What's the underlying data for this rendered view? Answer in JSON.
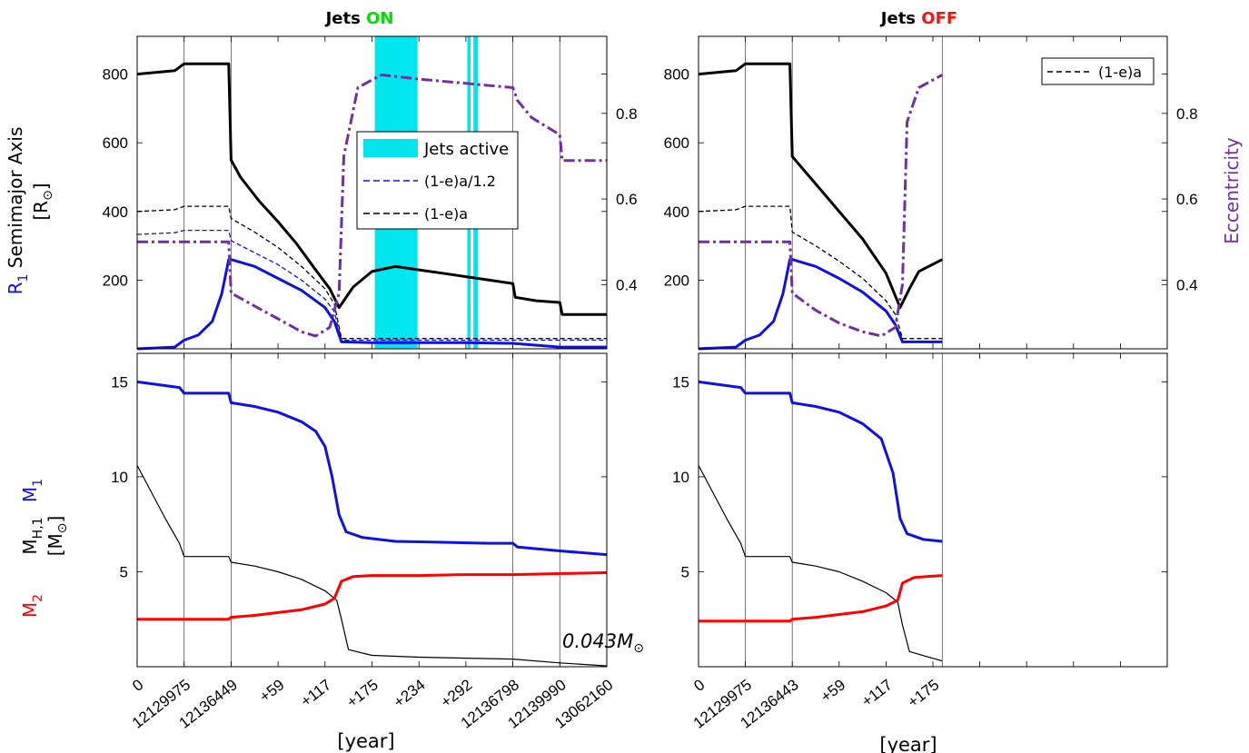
{
  "colors": {
    "r1": "#1010e0",
    "black": "#000000",
    "ecc": "#7030a0",
    "m2": "#ff0000",
    "jets": "#00e5ee",
    "on": "#00e000",
    "off": "#ff1010"
  },
  "titles": {
    "left_prefix": "Jets ",
    "left_suffix": "ON",
    "right_prefix": "Jets ",
    "right_suffix": "OFF"
  },
  "axis_labels": {
    "top_left_r1": "R",
    "top_left_r1_sub": "1",
    "top_left_semimajor": "Semimajor Axis",
    "top_left_unit": "[R",
    "top_left_unit_sym": "⊙",
    "top_left_unit_close": "]",
    "right_ecc": "Eccentricity",
    "bottom_m1": "M",
    "bottom_m1_sub": "1",
    "bottom_mh": "M",
    "bottom_mh_sub": "H,1",
    "bottom_unit": "[M",
    "bottom_unit_sym": "⊙",
    "bottom_unit_close": "]",
    "bottom_m2": "M",
    "bottom_m2_sub": "2",
    "xlabel_left": "[year]",
    "xlabel_right": "[year]"
  },
  "annotation": {
    "core_mass": "0.043M",
    "core_mass_sym": "⊙"
  },
  "legend_left": {
    "items": [
      "Jets active",
      "(1-e)a/1.2",
      "(1-e)a"
    ]
  },
  "legend_right": {
    "items": [
      "(1-e)a"
    ]
  },
  "chart_data": [
    {
      "type": "line",
      "panel": "top-left",
      "title": "Jets ON",
      "ylabel_left": "R1 Semimajor Axis [R⊙]",
      "ylabel_right": "Eccentricity",
      "y_left_ticks": [
        200,
        400,
        600,
        800
      ],
      "y_left_lim": [
        0,
        910
      ],
      "y_right_ticks": [
        0.4,
        0.6,
        0.8
      ],
      "y_right_lim": [
        0.25,
        0.98
      ],
      "x_positions": [
        0,
        1,
        2,
        3,
        4,
        5,
        6,
        7,
        8,
        9,
        10
      ],
      "xtick_labels": [
        "0",
        "12129975",
        "12136449",
        "+59",
        "+117",
        "+175",
        "+234",
        "+292",
        "12136798",
        "12139990",
        "13062160"
      ],
      "xlabel": "[year]",
      "jets_active_intervals": [
        [
          5.06,
          5.97
        ],
        [
          7.03,
          7.1
        ],
        [
          7.16,
          7.26
        ]
      ],
      "series": [
        {
          "name": "Semimajor Axis",
          "axis": "left",
          "x": [
            0,
            0.8,
            1,
            1.95,
            2,
            2.2,
            2.6,
            3,
            3.4,
            3.8,
            4.1,
            4.3,
            4.6,
            5,
            5.5,
            6,
            6.5,
            7,
            7.5,
            8,
            8.05,
            8.5,
            9,
            9.05,
            10
          ],
          "y": [
            800,
            810,
            830,
            830,
            550,
            500,
            430,
            370,
            305,
            230,
            175,
            120,
            180,
            225,
            240,
            230,
            220,
            210,
            200,
            190,
            150,
            140,
            135,
            100,
            100
          ]
        },
        {
          "name": "R1",
          "axis": "left",
          "x": [
            0,
            0.8,
            1,
            1.3,
            1.6,
            1.8,
            1.95,
            2,
            2.5,
            3,
            3.5,
            4,
            4.2,
            4.35,
            5,
            6,
            7,
            8,
            9,
            10
          ],
          "y": [
            0,
            5,
            25,
            40,
            80,
            160,
            260,
            260,
            240,
            205,
            170,
            120,
            80,
            20,
            18,
            18,
            18,
            16,
            5,
            5
          ]
        },
        {
          "name": "(1-e)a",
          "axis": "left",
          "x": [
            0,
            0.8,
            1,
            1.95,
            2,
            2.5,
            3,
            3.5,
            4,
            4.2,
            4.35,
            5,
            6,
            7,
            8,
            9,
            10
          ],
          "y": [
            400,
            405,
            415,
            415,
            380,
            340,
            295,
            240,
            175,
            130,
            30,
            30,
            30,
            30,
            30,
            30,
            30
          ]
        },
        {
          "name": "(1-e)a/1.2",
          "axis": "left",
          "x": [
            0,
            0.8,
            1,
            1.95,
            2,
            2.5,
            3,
            3.5,
            4,
            4.2,
            4.35,
            5,
            6,
            7,
            8,
            9,
            10
          ],
          "y": [
            333,
            338,
            345,
            345,
            315,
            280,
            245,
            200,
            145,
            108,
            25,
            25,
            25,
            25,
            25,
            25,
            25
          ]
        },
        {
          "name": "Eccentricity",
          "axis": "right",
          "x": [
            0,
            1,
            1.95,
            2,
            2.5,
            3,
            3.5,
            3.8,
            4.1,
            4.3,
            4.4,
            4.7,
            5.2,
            6,
            7,
            8,
            8.1,
            8.4,
            9,
            9.05,
            10
          ],
          "y": [
            0.5,
            0.5,
            0.5,
            0.38,
            0.35,
            0.32,
            0.29,
            0.28,
            0.3,
            0.38,
            0.7,
            0.86,
            0.89,
            0.88,
            0.87,
            0.86,
            0.83,
            0.79,
            0.75,
            0.69,
            0.69
          ]
        }
      ]
    },
    {
      "type": "line",
      "panel": "top-right",
      "title": "Jets OFF",
      "ylabel_right": "Eccentricity",
      "y_left_ticks": [
        200,
        400,
        600,
        800
      ],
      "y_left_lim": [
        0,
        910
      ],
      "y_right_ticks": [
        0.4,
        0.6,
        0.8
      ],
      "y_right_lim": [
        0.25,
        0.98
      ],
      "x_positions": [
        0,
        1,
        2,
        3,
        4,
        5
      ],
      "xtick_labels": [
        "0",
        "12129975",
        "12136443",
        "+59",
        "+117",
        "+175"
      ],
      "xlabel": "[year]",
      "series": [
        {
          "name": "Semimajor Axis",
          "axis": "left",
          "x": [
            0,
            0.8,
            1,
            1.95,
            2,
            2.5,
            3,
            3.5,
            4,
            4.3,
            4.5,
            4.7,
            5.2
          ],
          "y": [
            800,
            810,
            830,
            830,
            560,
            480,
            400,
            320,
            220,
            120,
            175,
            225,
            260
          ]
        },
        {
          "name": "R1",
          "axis": "left",
          "x": [
            0,
            0.8,
            1,
            1.3,
            1.6,
            1.8,
            1.95,
            2,
            2.5,
            3,
            3.5,
            4,
            4.2,
            4.35,
            5.2
          ],
          "y": [
            0,
            5,
            25,
            40,
            80,
            160,
            260,
            260,
            240,
            205,
            165,
            110,
            70,
            20,
            20
          ]
        },
        {
          "name": "(1-e)a",
          "axis": "left",
          "x": [
            0,
            0.8,
            1,
            1.95,
            2,
            2.5,
            3,
            3.5,
            4,
            4.2,
            4.35,
            5.2
          ],
          "y": [
            400,
            405,
            415,
            415,
            340,
            300,
            255,
            205,
            140,
            100,
            30,
            30
          ]
        },
        {
          "name": "Eccentricity",
          "axis": "right",
          "x": [
            0,
            1,
            1.95,
            2,
            2.5,
            3,
            3.5,
            3.9,
            4.2,
            4.35,
            4.45,
            4.7,
            5.2
          ],
          "y": [
            0.5,
            0.5,
            0.5,
            0.38,
            0.34,
            0.31,
            0.29,
            0.28,
            0.3,
            0.4,
            0.78,
            0.86,
            0.89
          ]
        }
      ]
    },
    {
      "type": "line",
      "panel": "bottom-left",
      "ylabel": "M1 MH,1 [M⊙] M2",
      "y_ticks": [
        5,
        10,
        15
      ],
      "y_lim": [
        0,
        16.5
      ],
      "x_positions": [
        0,
        1,
        2,
        3,
        4,
        5,
        6,
        7,
        8,
        9,
        10
      ],
      "xtick_labels": [
        "0",
        "12129975",
        "12136449",
        "+59",
        "+117",
        "+175",
        "+234",
        "+292",
        "12136798",
        "12139990",
        "13062160"
      ],
      "xlabel": "[year]",
      "series": [
        {
          "name": "M1",
          "x": [
            0,
            0.9,
            1,
            1.95,
            2,
            2.5,
            3,
            3.5,
            3.8,
            4.0,
            4.15,
            4.3,
            4.45,
            4.8,
            5.5,
            6.5,
            7.5,
            8,
            8.1,
            9,
            10
          ],
          "y": [
            15,
            14.7,
            14.4,
            14.4,
            13.9,
            13.7,
            13.4,
            12.9,
            12.4,
            11.6,
            10,
            8,
            7.1,
            6.8,
            6.6,
            6.55,
            6.5,
            6.5,
            6.3,
            6.1,
            5.9
          ]
        },
        {
          "name": "MH,1",
          "x": [
            0,
            0.3,
            0.6,
            0.9,
            1,
            1.95,
            2,
            2.5,
            3,
            3.5,
            4,
            4.25,
            4.35,
            4.5,
            5,
            6,
            7,
            8,
            9,
            10
          ],
          "y": [
            10.6,
            9.2,
            7.8,
            6.5,
            5.8,
            5.8,
            5.5,
            5.3,
            5.0,
            4.6,
            4.0,
            3.5,
            2.5,
            0.9,
            0.6,
            0.5,
            0.45,
            0.4,
            0.2,
            0.043
          ]
        },
        {
          "name": "M2",
          "x": [
            0,
            1.95,
            2,
            2.5,
            3,
            3.5,
            4,
            4.2,
            4.35,
            4.6,
            5,
            6,
            7,
            8,
            9,
            10
          ],
          "y": [
            2.5,
            2.5,
            2.6,
            2.7,
            2.85,
            3.0,
            3.3,
            3.6,
            4.5,
            4.75,
            4.8,
            4.8,
            4.85,
            4.85,
            4.9,
            4.95
          ]
        }
      ]
    },
    {
      "type": "line",
      "panel": "bottom-right",
      "y_ticks": [
        5,
        10,
        15
      ],
      "y_lim": [
        0,
        16.5
      ],
      "x_positions": [
        0,
        1,
        2,
        3,
        4,
        5
      ],
      "xtick_labels": [
        "0",
        "12129975",
        "12136443",
        "+59",
        "+117",
        "+175"
      ],
      "xlabel": "[year]",
      "series": [
        {
          "name": "M1",
          "x": [
            0,
            0.9,
            1,
            1.95,
            2,
            2.5,
            3,
            3.5,
            3.9,
            4.15,
            4.3,
            4.45,
            4.8,
            5.2
          ],
          "y": [
            15,
            14.7,
            14.4,
            14.4,
            13.9,
            13.7,
            13.4,
            12.8,
            12.0,
            10.2,
            7.8,
            7.0,
            6.7,
            6.6
          ]
        },
        {
          "name": "MH,1",
          "x": [
            0,
            0.3,
            0.6,
            0.9,
            1,
            1.95,
            2,
            2.5,
            3,
            3.5,
            4,
            4.25,
            4.35,
            4.5,
            5.2
          ],
          "y": [
            10.6,
            9.2,
            7.8,
            6.5,
            5.8,
            5.8,
            5.5,
            5.3,
            5.0,
            4.5,
            3.9,
            3.4,
            2.2,
            0.8,
            0.3
          ]
        },
        {
          "name": "M2",
          "x": [
            0,
            1.95,
            2,
            2.5,
            3,
            3.5,
            4,
            4.25,
            4.35,
            4.6,
            5.2
          ],
          "y": [
            2.4,
            2.4,
            2.5,
            2.6,
            2.75,
            2.9,
            3.2,
            3.5,
            4.4,
            4.7,
            4.8
          ]
        }
      ]
    }
  ]
}
